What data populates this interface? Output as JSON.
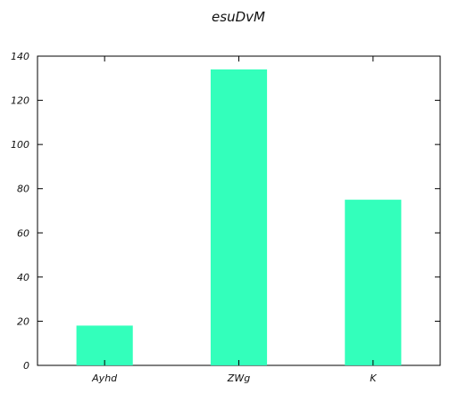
{
  "chart_data": {
    "type": "bar",
    "title": "esuDvM",
    "xlabel": "",
    "ylabel": "",
    "categories": [
      "Ayhd",
      "ZWg",
      "K"
    ],
    "values": [
      18,
      134,
      75
    ],
    "ylim": [
      0,
      140
    ],
    "yticks": [
      0,
      20,
      40,
      60,
      80,
      100,
      120,
      140
    ],
    "bar_color": "#33ffbb",
    "grid": false,
    "legend": "none"
  }
}
